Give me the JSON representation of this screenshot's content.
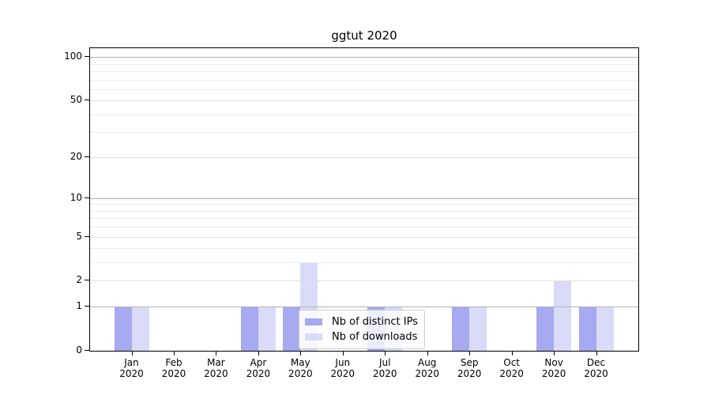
{
  "chart_data": {
    "type": "bar",
    "title": "ggtut 2020",
    "xlabel": "",
    "ylabel": "",
    "x": {
      "months": [
        "Jan",
        "Feb",
        "Mar",
        "Apr",
        "May",
        "Jun",
        "Jul",
        "Aug",
        "Sep",
        "Oct",
        "Nov",
        "Dec"
      ],
      "year": "2020"
    },
    "series": [
      {
        "name": "Nb of distinct IPs",
        "color": "#a7a9f1",
        "values": [
          1,
          0,
          0,
          1,
          1,
          0,
          1,
          0,
          1,
          0,
          1,
          1
        ]
      },
      {
        "name": "Nb of downloads",
        "color": "#d9dbf9",
        "values": [
          1,
          0,
          0,
          1,
          3,
          0,
          1,
          0,
          1,
          0,
          2,
          1
        ]
      }
    ],
    "yscale": "log1p",
    "ylim": [
      0,
      115
    ],
    "yticks": [
      0,
      1,
      2,
      5,
      10,
      20,
      50,
      100
    ],
    "grid": {
      "major": [
        1,
        10,
        100
      ],
      "mid": [
        2,
        5,
        20,
        50
      ],
      "minor": [
        3,
        4,
        6,
        7,
        8,
        9,
        30,
        40,
        60,
        70,
        80,
        90
      ]
    },
    "legend": {
      "position": "lower center",
      "items": [
        "Nb of distinct IPs",
        "Nb of downloads"
      ]
    }
  },
  "colors": {
    "background": "#ffffff",
    "spine": "#000000",
    "text": "#000000",
    "grid_major": "#b3b3b3",
    "grid_mid": "#e0e0e0",
    "grid_minor": "#ececec",
    "legend_border": "#cccccc",
    "legend_bg": "rgba(255,255,255,0.8)",
    "bar_distinct_ips": "#a7a9f1",
    "bar_downloads": "#d9dbf9"
  }
}
